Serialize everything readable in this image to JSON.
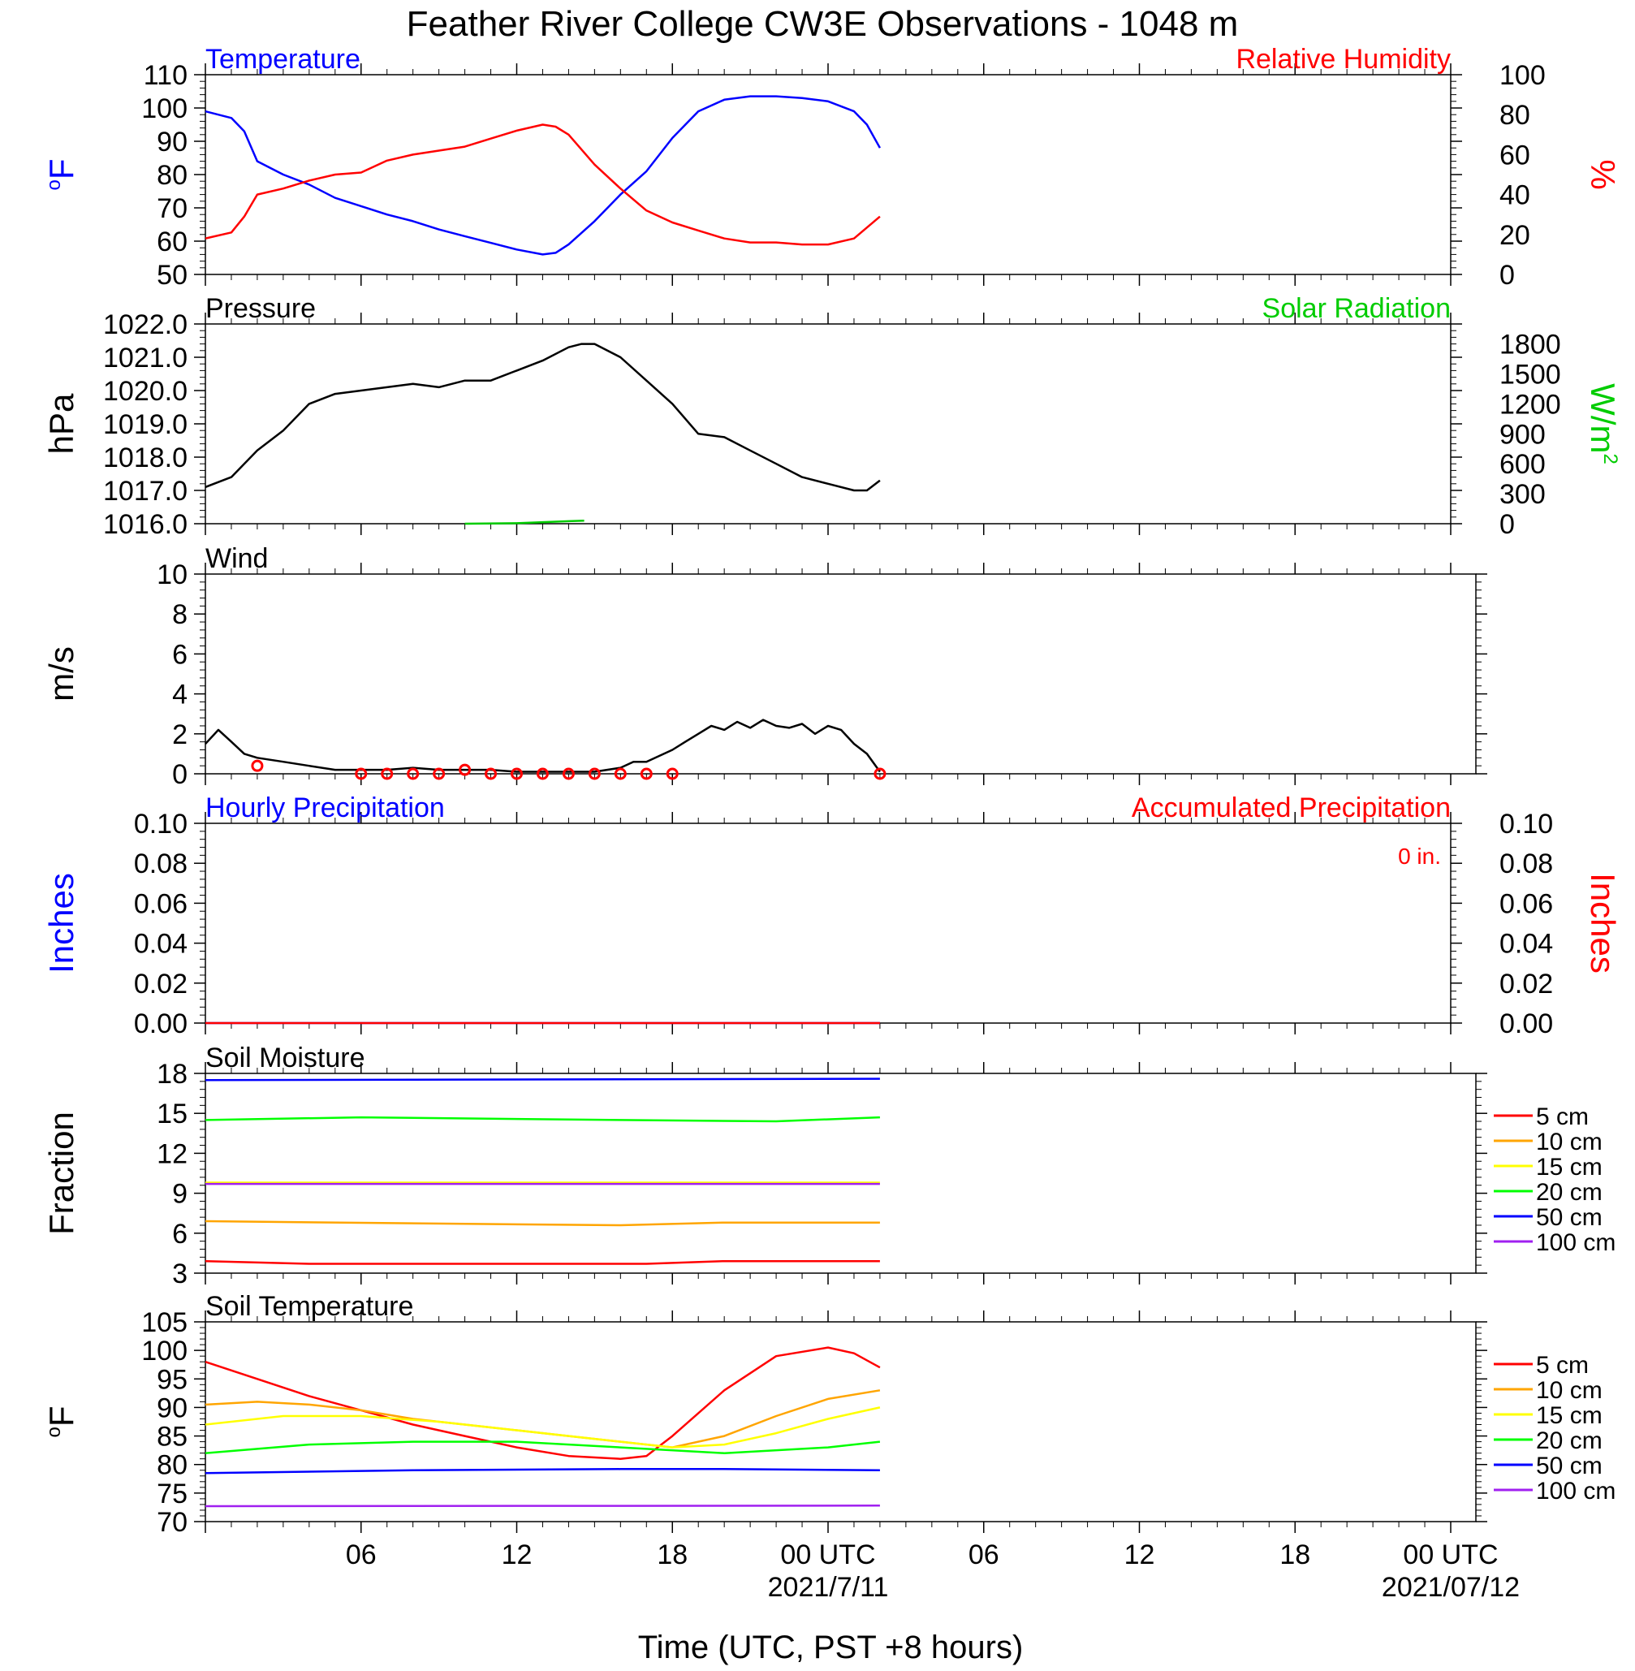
{
  "page_title": "Feather River College CW3E Observations - 1048 m",
  "x_axis": {
    "title": "Time (UTC, PST +8 hours)",
    "tick_labels": [
      "06",
      "12",
      "18",
      "00 UTC",
      "06",
      "12",
      "18",
      "00 UTC"
    ],
    "date_labels": [
      "2021/7/11",
      "2021/07/12"
    ],
    "range_hours": [
      0,
      48
    ]
  },
  "chart_data": [
    {
      "type": "line",
      "title_left": "Temperature",
      "title_right": "Relative Humidity",
      "ylabel_left": "oF",
      "ylabel_right": "%",
      "ylim_left": [
        50,
        110
      ],
      "ylim_right": [
        0,
        100
      ],
      "yticks_left": [
        "110",
        "100",
        "90",
        "80",
        "70",
        "60",
        "50"
      ],
      "yticks_right": [
        "100",
        "80",
        "60",
        "40",
        "20",
        "0"
      ],
      "colors": {
        "left": "#0000ff",
        "right": "#ff0000"
      },
      "series": [
        {
          "name": "Temperature",
          "axis": "left",
          "x": [
            0,
            1,
            1.5,
            2,
            3,
            4,
            5,
            6,
            7,
            8,
            9,
            10,
            11,
            12,
            13,
            13.5,
            14,
            15,
            16,
            17,
            18,
            19,
            20,
            21,
            22,
            23,
            24,
            25,
            25.5,
            26
          ],
          "values": [
            99,
            97,
            93,
            84,
            80,
            77,
            73,
            70.5,
            68,
            66,
            63.5,
            61.5,
            59.5,
            57.5,
            56,
            56.5,
            59,
            66,
            74,
            81,
            91,
            99,
            102.5,
            103.5,
            103.5,
            103,
            102,
            99,
            95,
            88
          ]
        },
        {
          "name": "Relative Humidity",
          "axis": "right",
          "x": [
            0,
            1,
            1.5,
            2,
            3,
            4,
            5,
            6,
            7,
            8,
            9,
            10,
            11,
            12,
            13,
            13.5,
            14,
            15,
            16,
            17,
            18,
            19,
            20,
            21,
            22,
            23,
            24,
            25,
            26
          ],
          "values": [
            18,
            21,
            29,
            40,
            43,
            47,
            50,
            51,
            57,
            60,
            62,
            64,
            68,
            72,
            75,
            74,
            70,
            55,
            43,
            32,
            26,
            22,
            18,
            16,
            16,
            15,
            15,
            18,
            29
          ]
        }
      ]
    },
    {
      "type": "line",
      "title_left": "Pressure",
      "title_right": "Solar Radiation",
      "ylabel_left": "hPa",
      "ylabel_right": "W/m2",
      "ylim_left": [
        1016.0,
        1022.0
      ],
      "ylim_right": [
        0,
        2000
      ],
      "yticks_left": [
        "1022.0",
        "1021.0",
        "1020.0",
        "1019.0",
        "1018.0",
        "1017.0",
        "1016.0"
      ],
      "yticks_right": [
        "1800",
        "1500",
        "1200",
        "900",
        "600",
        "300",
        "0"
      ],
      "yticks_right_values": [
        1800,
        1500,
        1200,
        900,
        600,
        300,
        0
      ],
      "colors": {
        "left": "#000000",
        "right": "#00cc00"
      },
      "series": [
        {
          "name": "Pressure",
          "axis": "left",
          "x": [
            0,
            1,
            2,
            3,
            4,
            5,
            6,
            7,
            8,
            9,
            10,
            11,
            12,
            13,
            14,
            14.5,
            15,
            16,
            17,
            18,
            19,
            20,
            21,
            22,
            23,
            24,
            25,
            25.5,
            26
          ],
          "values": [
            1017.1,
            1017.4,
            1018.2,
            1018.8,
            1019.6,
            1019.9,
            1020.0,
            1020.1,
            1020.2,
            1020.1,
            1020.3,
            1020.3,
            1020.6,
            1020.9,
            1021.3,
            1021.4,
            1021.4,
            1021.0,
            1020.3,
            1019.6,
            1018.7,
            1018.6,
            1018.2,
            1017.8,
            1017.4,
            1017.2,
            1017.0,
            1017.0,
            1017.3
          ]
        },
        {
          "name": "Solar Radiation",
          "axis": "right",
          "x": [
            10,
            12,
            14,
            14.6
          ],
          "values": [
            0,
            5,
            25,
            30
          ]
        }
      ]
    },
    {
      "type": "line",
      "title_left": "Wind",
      "ylabel_left": "m/s",
      "ylim_left": [
        0,
        10
      ],
      "yticks_left": [
        "10",
        "8",
        "6",
        "4",
        "2",
        "0"
      ],
      "colors": {
        "line": "#000000",
        "barbs": "#ff0000"
      },
      "series": [
        {
          "name": "Wind speed",
          "x": [
            0,
            0.5,
            1,
            1.5,
            2,
            3,
            4,
            5,
            6,
            7,
            8,
            9,
            10,
            11,
            12,
            13,
            14,
            15,
            16,
            16.5,
            17,
            18,
            18.5,
            19,
            19.5,
            20,
            20.5,
            21,
            21.5,
            22,
            22.5,
            23,
            23.5,
            24,
            24.5,
            25,
            25.5,
            26
          ],
          "values": [
            1.5,
            2.2,
            1.6,
            1.0,
            0.8,
            0.6,
            0.4,
            0.2,
            0.2,
            0.2,
            0.3,
            0.2,
            0.2,
            0.2,
            0.1,
            0.1,
            0.1,
            0.1,
            0.3,
            0.6,
            0.6,
            1.2,
            1.6,
            2.0,
            2.4,
            2.2,
            2.6,
            2.3,
            2.7,
            2.4,
            2.3,
            2.5,
            2.0,
            2.4,
            2.2,
            1.5,
            1.0,
            0.1
          ]
        },
        {
          "name": "Wind barbs",
          "x": [
            2,
            6,
            7,
            8,
            9,
            10,
            11,
            12,
            13,
            14,
            15,
            16,
            17,
            18,
            26
          ],
          "values": [
            0.4,
            0,
            0,
            0,
            0,
            0.2,
            0,
            0,
            0,
            0,
            0,
            0,
            0,
            0,
            0
          ]
        }
      ]
    },
    {
      "type": "line",
      "title_left": "Hourly Precipitation",
      "title_right": "Accumulated Precipitation",
      "annotation": "0 in.",
      "ylabel_left": "Inches",
      "ylabel_right": "Inches",
      "ylim_left": [
        0,
        0.1
      ],
      "ylim_right": [
        0,
        0.1
      ],
      "yticks_left": [
        "0.10",
        "0.08",
        "0.06",
        "0.04",
        "0.02",
        "0.00"
      ],
      "yticks_right": [
        "0.10",
        "0.08",
        "0.06",
        "0.04",
        "0.02",
        "0.00"
      ],
      "colors": {
        "left": "#0000ff",
        "right": "#ff0000"
      },
      "series": [
        {
          "name": "Hourly Precipitation",
          "x": [
            0,
            26
          ],
          "values": [
            0,
            0
          ]
        },
        {
          "name": "Accumulated Precipitation",
          "x": [
            0,
            26
          ],
          "values": [
            0,
            0
          ]
        }
      ]
    },
    {
      "type": "line",
      "title_left": "Soil Moisture",
      "ylabel_left": "Fraction",
      "ylim_left": [
        3,
        18
      ],
      "yticks_left": [
        "18",
        "15",
        "12",
        "9",
        "6",
        "3"
      ],
      "legend": [
        "5 cm",
        "10 cm",
        "15 cm",
        "20 cm",
        "50 cm",
        "100 cm"
      ],
      "colors": {
        "5 cm": "#ff0000",
        "10 cm": "#ffa500",
        "15 cm": "#ffff00",
        "20 cm": "#00ff00",
        "50 cm": "#0000ff",
        "100 cm": "#a020f0"
      },
      "series": [
        {
          "name": "5 cm",
          "x": [
            0,
            4,
            17,
            20,
            26
          ],
          "values": [
            3.9,
            3.7,
            3.7,
            3.9,
            3.9
          ]
        },
        {
          "name": "10 cm",
          "x": [
            0,
            10,
            16,
            20,
            26
          ],
          "values": [
            6.9,
            6.7,
            6.6,
            6.8,
            6.8
          ]
        },
        {
          "name": "15 cm",
          "x": [
            0,
            26
          ],
          "values": [
            9.8,
            9.8
          ]
        },
        {
          "name": "20 cm",
          "x": [
            0,
            6,
            16,
            22,
            26
          ],
          "values": [
            14.5,
            14.7,
            14.5,
            14.4,
            14.7
          ]
        },
        {
          "name": "50 cm",
          "x": [
            0,
            26
          ],
          "values": [
            17.5,
            17.6
          ]
        },
        {
          "name": "100 cm",
          "x": [
            0,
            26
          ],
          "values": [
            9.7,
            9.7
          ]
        }
      ]
    },
    {
      "type": "line",
      "title_left": "Soil Temperature",
      "ylabel_left": "oF",
      "ylim_left": [
        70,
        105
      ],
      "yticks_left": [
        "105",
        "100",
        "95",
        "90",
        "85",
        "80",
        "75",
        "70"
      ],
      "legend": [
        "5 cm",
        "10 cm",
        "15 cm",
        "20 cm",
        "50 cm",
        "100 cm"
      ],
      "colors": {
        "5 cm": "#ff0000",
        "10 cm": "#ffa500",
        "15 cm": "#ffff00",
        "20 cm": "#00ff00",
        "50 cm": "#0000ff",
        "100 cm": "#a020f0"
      },
      "series": [
        {
          "name": "5 cm",
          "x": [
            0,
            2,
            4,
            6,
            8,
            10,
            12,
            14,
            16,
            17,
            18,
            20,
            22,
            24,
            25,
            26
          ],
          "values": [
            98,
            95,
            92,
            89.5,
            87,
            85,
            83,
            81.5,
            81,
            81.5,
            85,
            93,
            99,
            100.5,
            99.5,
            97
          ]
        },
        {
          "name": "10 cm",
          "x": [
            0,
            2,
            4,
            6,
            8,
            10,
            12,
            14,
            16,
            18,
            20,
            22,
            24,
            26
          ],
          "values": [
            90.5,
            91,
            90.5,
            89.5,
            88,
            87,
            86,
            85,
            84,
            83,
            85,
            88.5,
            91.5,
            93
          ]
        },
        {
          "name": "15 cm",
          "x": [
            0,
            3,
            6,
            9,
            12,
            15,
            18,
            20,
            22,
            24,
            26
          ],
          "values": [
            87,
            88.5,
            88.5,
            87.5,
            86,
            84.5,
            83,
            83.5,
            85.5,
            88,
            90
          ]
        },
        {
          "name": "20 cm",
          "x": [
            0,
            4,
            8,
            12,
            16,
            20,
            24,
            26
          ],
          "values": [
            82,
            83.5,
            84,
            84,
            83,
            82,
            83,
            84
          ]
        },
        {
          "name": "50 cm",
          "x": [
            0,
            8,
            16,
            20,
            26
          ],
          "values": [
            78.5,
            79,
            79.2,
            79.2,
            79
          ]
        },
        {
          "name": "100 cm",
          "x": [
            0,
            26
          ],
          "values": [
            72.7,
            72.8
          ]
        }
      ]
    }
  ]
}
